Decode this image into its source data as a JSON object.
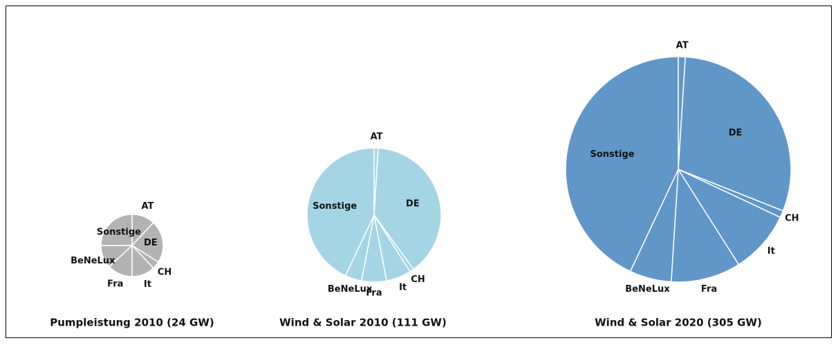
{
  "chart_data": [
    {
      "type": "pie",
      "title": "Pumpleistung 2010 (24 GW)",
      "color": "#b3b3b3",
      "categories": [
        "AT",
        "DE",
        "CH",
        "It",
        "Fra",
        "BeNeLux",
        "Sonstige"
      ],
      "values": [
        12,
        22,
        4,
        12,
        13,
        12,
        25
      ]
    },
    {
      "type": "pie",
      "title": "Wind & Solar 2010 (111 GW)",
      "color": "#a5d5e4",
      "categories": [
        "AT",
        "DE",
        "CH",
        "It",
        "Fra",
        "BeNeLux",
        "Sonstige"
      ],
      "values": [
        1,
        39,
        1,
        6,
        6,
        4,
        43
      ]
    },
    {
      "type": "pie",
      "title": "Wind & Solar 2020 (305 GW)",
      "color": "#6196c9",
      "categories": [
        "AT",
        "DE",
        "CH",
        "It",
        "Fra",
        "BeNeLux",
        "Sonstige"
      ],
      "values": [
        1,
        30,
        1,
        9,
        10,
        6,
        43
      ]
    }
  ]
}
